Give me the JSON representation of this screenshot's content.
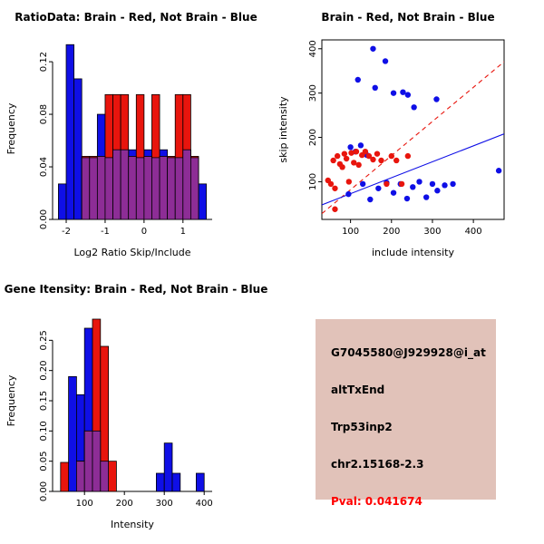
{
  "colors": {
    "blue": "#0F0FE6",
    "red": "#E8150D",
    "overlap": "#8D2D96",
    "axis": "#000000",
    "info_bg": "#E1C2B9"
  },
  "chart_data": [
    {
      "id": "ratio-hist",
      "type": "bar",
      "title": "RatioData: Brain - Red, Not Brain - Blue",
      "xlabel": "Log2 Ratio Skip/Include",
      "ylabel": "Frequency",
      "xlim": [
        -2.35,
        1.75
      ],
      "ylim": [
        0,
        0.138
      ],
      "xticks": [
        -2,
        -1,
        0,
        1
      ],
      "xtick_labels": [
        "-2",
        "-1",
        "0",
        "1"
      ],
      "yticks": [
        0,
        0.04,
        0.08,
        0.12
      ],
      "ytick_labels": [
        "0.00",
        "0.04",
        "0.08",
        "0.12"
      ],
      "bin_start": -2.2,
      "bin_width": 0.2,
      "series": [
        {
          "name": "Not Brain",
          "color_key": "blue",
          "values": [
            0.027,
            0.133,
            0.107,
            0.047,
            0.047,
            0.08,
            0.047,
            0.053,
            0.053,
            0.053,
            0.047,
            0.053,
            0.047,
            0.053,
            0.047,
            0.047,
            0.053,
            0.047,
            0.027
          ]
        },
        {
          "name": "Brain",
          "color_key": "red",
          "values": [
            0,
            0,
            0,
            0.048,
            0.048,
            0.048,
            0.095,
            0.095,
            0.095,
            0.048,
            0.095,
            0.048,
            0.095,
            0.048,
            0.048,
            0.095,
            0.095,
            0.048,
            0
          ]
        }
      ]
    },
    {
      "id": "intensity-scatter",
      "type": "scatter",
      "title": "Brain - Red, Not Brain - Blue",
      "xlabel": "include intensity",
      "ylabel": "skip intensity",
      "xlim": [
        30,
        475
      ],
      "ylim": [
        15,
        420
      ],
      "xticks": [
        100,
        200,
        300,
        400
      ],
      "xtick_labels": [
        "100",
        "200",
        "300",
        "400"
      ],
      "yticks": [
        100,
        200,
        300,
        400
      ],
      "ytick_labels": [
        "100",
        "200",
        "300",
        "400"
      ],
      "series": [
        {
          "name": "Not Brain",
          "color_key": "blue",
          "points": [
            [
              155,
              400
            ],
            [
              185,
              372
            ],
            [
              118,
              330
            ],
            [
              160,
              312
            ],
            [
              205,
              300
            ],
            [
              228,
              302
            ],
            [
              240,
              296
            ],
            [
              255,
              268
            ],
            [
              310,
              286
            ],
            [
              100,
              178
            ],
            [
              112,
              168
            ],
            [
              125,
              182
            ],
            [
              140,
              160
            ],
            [
              95,
              72
            ],
            [
              130,
              95
            ],
            [
              148,
              60
            ],
            [
              168,
              85
            ],
            [
              188,
              98
            ],
            [
              205,
              75
            ],
            [
              222,
              95
            ],
            [
              238,
              62
            ],
            [
              252,
              88
            ],
            [
              268,
              100
            ],
            [
              285,
              65
            ],
            [
              300,
              95
            ],
            [
              312,
              80
            ],
            [
              330,
              92
            ],
            [
              350,
              95
            ],
            [
              462,
              125
            ]
          ]
        },
        {
          "name": "Brain",
          "color_key": "red",
          "points": [
            [
              45,
              103
            ],
            [
              52,
              95
            ],
            [
              58,
              148
            ],
            [
              62,
              85
            ],
            [
              68,
              158
            ],
            [
              74,
              140
            ],
            [
              80,
              133
            ],
            [
              85,
              163
            ],
            [
              90,
              152
            ],
            [
              96,
              100
            ],
            [
              102,
              165
            ],
            [
              108,
              143
            ],
            [
              114,
              168
            ],
            [
              120,
              138
            ],
            [
              128,
              160
            ],
            [
              136,
              168
            ],
            [
              145,
              158
            ],
            [
              155,
              150
            ],
            [
              165,
              163
            ],
            [
              175,
              148
            ],
            [
              188,
              95
            ],
            [
              200,
              158
            ],
            [
              212,
              148
            ],
            [
              225,
              95
            ],
            [
              240,
              158
            ],
            [
              62,
              38
            ]
          ]
        }
      ],
      "lines": [
        {
          "name": "brain-fit-line",
          "color_key": "red",
          "dashed": true,
          "slope": 0.77,
          "intercept": 5
        },
        {
          "name": "notbrain-fit-line",
          "color_key": "blue",
          "dashed": false,
          "slope": 0.36,
          "intercept": 37
        }
      ]
    },
    {
      "id": "gene-hist",
      "type": "bar",
      "title": "Gene Itensity: Brain - Red, Not Brain - Blue",
      "xlabel": "Intensity",
      "ylabel": "Frequency",
      "xlim": [
        20,
        420
      ],
      "ylim": [
        0,
        0.3
      ],
      "xticks": [
        100,
        200,
        300,
        400
      ],
      "xtick_labels": [
        "100",
        "200",
        "300",
        "400"
      ],
      "yticks": [
        0,
        0.05,
        0.1,
        0.15,
        0.2,
        0.25
      ],
      "ytick_labels": [
        "0.00",
        "0.05",
        "0.10",
        "0.15",
        "0.20",
        "0.25"
      ],
      "bin_start": 40,
      "bin_width": 20,
      "series": [
        {
          "name": "Not Brain",
          "color_key": "blue",
          "values": [
            0,
            0.19,
            0.16,
            0.27,
            0.1,
            0.05,
            0,
            0,
            0,
            0,
            0,
            0,
            0.03,
            0.08,
            0.03,
            0,
            0,
            0.03
          ]
        },
        {
          "name": "Brain",
          "color_key": "red",
          "values": [
            0.048,
            0,
            0.05,
            0.1,
            0.285,
            0.24,
            0.05,
            0,
            0,
            0,
            0,
            0,
            0,
            0,
            0,
            0,
            0,
            0
          ]
        }
      ]
    }
  ],
  "info_panel": {
    "lines": [
      {
        "text": "G7045580@J929928@i_at",
        "color": "#000000"
      },
      {
        "text": "altTxEnd",
        "color": "#000000"
      },
      {
        "text": "Trp53inp2",
        "color": "#000000"
      },
      {
        "text": "chr2.15168-2.3",
        "color": "#000000"
      },
      {
        "text": "Pval: 0.041674",
        "color": "#FF0000"
      }
    ]
  }
}
